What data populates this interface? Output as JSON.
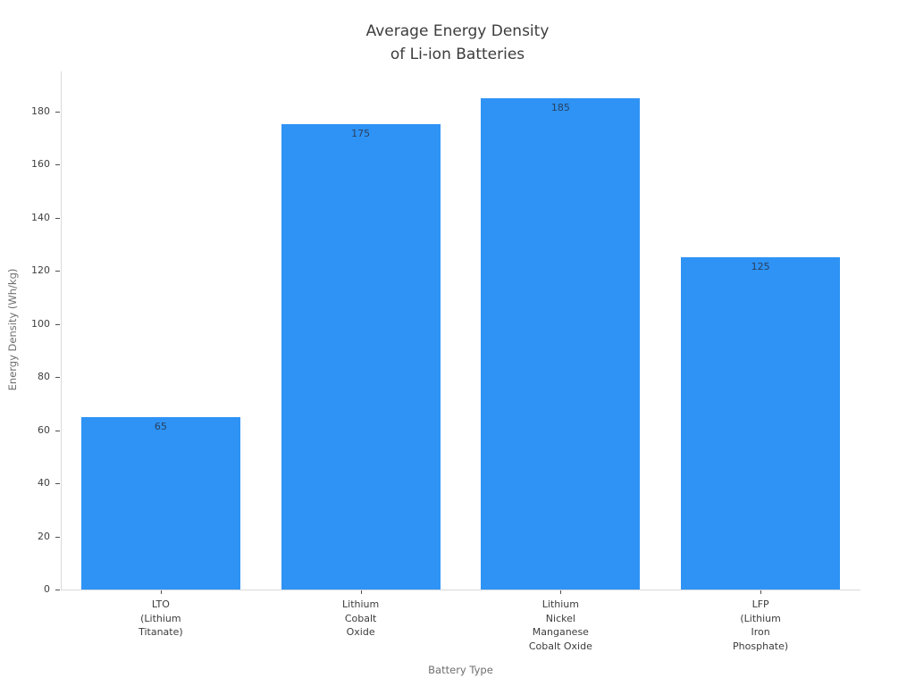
{
  "title": {
    "line1": "Average Energy Density",
    "line2": "of Li-ion Batteries"
  },
  "chart_data": {
    "type": "bar",
    "title": "Average Energy Density\nof Li-ion Batteries",
    "xlabel": "Battery Type",
    "ylabel": "Energy Density (Wh/kg)",
    "categories": [
      "LTO\n(Lithium\nTitanate)",
      "Lithium\nCobalt\nOxide",
      "Lithium\nNickel\nManganese\nCobalt Oxide",
      "LFP\n(Lithium\nIron\nPhosphate)"
    ],
    "values": [
      65,
      175,
      185,
      125
    ],
    "bar_labels": [
      "65",
      "175",
      "185",
      "125"
    ],
    "yticks": [
      0,
      20,
      40,
      60,
      80,
      100,
      120,
      140,
      160,
      180
    ],
    "ylim": [
      0,
      195
    ],
    "grid": false,
    "legend": false,
    "bar_color": "#2e93f5",
    "value_label_color": "#2a3f5f",
    "spine_color": "#d9d9d9"
  }
}
